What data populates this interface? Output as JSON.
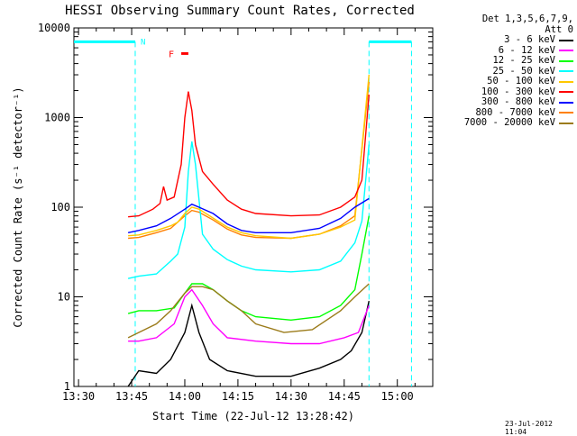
{
  "chart_data": {
    "type": "line",
    "title": "HESSI Observing Summary Count Rates, Corrected",
    "xlabel": "Start Time (22-Jul-12 13:28:42)",
    "ylabel": "Corrected Count Rate (s⁻¹ detector⁻¹)",
    "x_ticks": [
      "13:30",
      "13:45",
      "14:00",
      "14:15",
      "14:30",
      "14:45",
      "15:00"
    ],
    "y_ticks": [
      "1",
      "10",
      "100",
      "1000",
      "10000"
    ],
    "x_range": [
      "13:28:42",
      "15:10"
    ],
    "ylim": [
      1,
      10000
    ],
    "y_scale": "log",
    "series": [
      {
        "name": "3 - 6 keV",
        "color": "#000000",
        "points": [
          [
            "13:44",
            1
          ],
          [
            "13:47",
            1.5
          ],
          [
            "13:52",
            1.4
          ],
          [
            "13:56",
            2
          ],
          [
            "14:00",
            4
          ],
          [
            "14:02",
            8
          ],
          [
            "14:04",
            4
          ],
          [
            "14:07",
            2
          ],
          [
            "14:12",
            1.5
          ],
          [
            "14:20",
            1.3
          ],
          [
            "14:30",
            1.3
          ],
          [
            "14:38",
            1.6
          ],
          [
            "14:44",
            2
          ],
          [
            "14:47",
            2.5
          ],
          [
            "14:50",
            4
          ],
          [
            "14:52",
            9
          ]
        ]
      },
      {
        "name": "6 - 12 keV",
        "color": "#ff00ff",
        "points": [
          [
            "13:44",
            3.2
          ],
          [
            "13:47",
            3.2
          ],
          [
            "13:52",
            3.5
          ],
          [
            "13:57",
            5
          ],
          [
            "14:00",
            10
          ],
          [
            "14:02",
            12
          ],
          [
            "14:05",
            8
          ],
          [
            "14:08",
            5
          ],
          [
            "14:12",
            3.5
          ],
          [
            "14:20",
            3.2
          ],
          [
            "14:30",
            3.0
          ],
          [
            "14:38",
            3.0
          ],
          [
            "14:45",
            3.5
          ],
          [
            "14:49",
            4
          ],
          [
            "14:52",
            8
          ]
        ]
      },
      {
        "name": "12 - 25 keV",
        "color": "#00ff00",
        "points": [
          [
            "13:44",
            6.5
          ],
          [
            "13:47",
            7
          ],
          [
            "13:52",
            7
          ],
          [
            "13:57",
            7.5
          ],
          [
            "14:00",
            11
          ],
          [
            "14:02",
            14
          ],
          [
            "14:05",
            14
          ],
          [
            "14:08",
            12
          ],
          [
            "14:12",
            9
          ],
          [
            "14:16",
            7
          ],
          [
            "14:20",
            6
          ],
          [
            "14:30",
            5.5
          ],
          [
            "14:38",
            6
          ],
          [
            "14:44",
            8
          ],
          [
            "14:48",
            12
          ],
          [
            "14:50",
            30
          ],
          [
            "14:52",
            80
          ]
        ]
      },
      {
        "name": "25 - 50 keV",
        "color": "#00ffff",
        "points": [
          [
            "13:44",
            16
          ],
          [
            "13:47",
            17
          ],
          [
            "13:52",
            18
          ],
          [
            "13:56",
            25
          ],
          [
            "13:58",
            30
          ],
          [
            "14:00",
            60
          ],
          [
            "14:01",
            250
          ],
          [
            "14:02",
            540
          ],
          [
            "14:03",
            300
          ],
          [
            "14:05",
            50
          ],
          [
            "14:08",
            34
          ],
          [
            "14:12",
            26
          ],
          [
            "14:16",
            22
          ],
          [
            "14:20",
            20
          ],
          [
            "14:30",
            19
          ],
          [
            "14:38",
            20
          ],
          [
            "14:44",
            25
          ],
          [
            "14:48",
            40
          ],
          [
            "14:50",
            70
          ],
          [
            "14:52",
            500
          ]
        ]
      },
      {
        "name": "50 - 100 keV",
        "color": "#ffc800",
        "points": [
          [
            "13:44",
            48
          ],
          [
            "13:47",
            49
          ],
          [
            "13:52",
            55
          ],
          [
            "13:56",
            62
          ],
          [
            "13:58",
            68
          ],
          [
            "14:00",
            85
          ],
          [
            "14:02",
            100
          ],
          [
            "14:04",
            95
          ],
          [
            "14:07",
            80
          ],
          [
            "14:12",
            60
          ],
          [
            "14:16",
            52
          ],
          [
            "14:20",
            48
          ],
          [
            "14:30",
            45
          ],
          [
            "14:38",
            50
          ],
          [
            "14:44",
            60
          ],
          [
            "14:48",
            72
          ],
          [
            "14:52",
            3000
          ]
        ]
      },
      {
        "name": "100 - 300 keV",
        "color": "#ff0000",
        "points": [
          [
            "13:44",
            78
          ],
          [
            "13:47",
            80
          ],
          [
            "13:51",
            95
          ],
          [
            "13:53",
            110
          ],
          [
            "13:54",
            170
          ],
          [
            "13:55",
            120
          ],
          [
            "13:57",
            130
          ],
          [
            "13:59",
            300
          ],
          [
            "14:00",
            1000
          ],
          [
            "14:01",
            1950
          ],
          [
            "14:02",
            1200
          ],
          [
            "14:03",
            500
          ],
          [
            "14:05",
            250
          ],
          [
            "14:08",
            180
          ],
          [
            "14:12",
            120
          ],
          [
            "14:16",
            95
          ],
          [
            "14:20",
            85
          ],
          [
            "14:30",
            80
          ],
          [
            "14:38",
            82
          ],
          [
            "14:44",
            100
          ],
          [
            "14:48",
            130
          ],
          [
            "14:50",
            200
          ],
          [
            "14:52",
            1800
          ]
        ]
      },
      {
        "name": "300 - 800 keV",
        "color": "#0000ff",
        "points": [
          [
            "13:44",
            52
          ],
          [
            "13:47",
            55
          ],
          [
            "13:52",
            62
          ],
          [
            "13:56",
            75
          ],
          [
            "14:00",
            95
          ],
          [
            "14:02",
            108
          ],
          [
            "14:04",
            100
          ],
          [
            "14:08",
            85
          ],
          [
            "14:12",
            65
          ],
          [
            "14:16",
            55
          ],
          [
            "14:20",
            52
          ],
          [
            "14:30",
            52
          ],
          [
            "14:38",
            58
          ],
          [
            "14:44",
            75
          ],
          [
            "14:48",
            100
          ],
          [
            "14:52",
            125
          ]
        ]
      },
      {
        "name": "800 - 7000 keV",
        "color": "#ff8000",
        "points": [
          [
            "13:44",
            45
          ],
          [
            "13:47",
            46
          ],
          [
            "13:52",
            52
          ],
          [
            "13:56",
            58
          ],
          [
            "14:00",
            80
          ],
          [
            "14:02",
            92
          ],
          [
            "14:04",
            88
          ],
          [
            "14:08",
            72
          ],
          [
            "14:12",
            57
          ],
          [
            "14:16",
            49
          ],
          [
            "14:20",
            46
          ],
          [
            "14:30",
            45
          ],
          [
            "14:38",
            50
          ],
          [
            "14:44",
            62
          ],
          [
            "14:48",
            80
          ],
          [
            "14:52",
            2500
          ]
        ]
      },
      {
        "name": "7000 - 20000 keV",
        "color": "#9b7b1a",
        "points": [
          [
            "13:44",
            3.5
          ],
          [
            "13:47",
            4
          ],
          [
            "13:52",
            5
          ],
          [
            "13:56",
            7
          ],
          [
            "14:00",
            11
          ],
          [
            "14:02",
            13
          ],
          [
            "14:05",
            13
          ],
          [
            "14:08",
            12
          ],
          [
            "14:12",
            9
          ],
          [
            "14:16",
            7
          ],
          [
            "14:20",
            5
          ],
          [
            "14:28",
            4
          ],
          [
            "14:36",
            4.3
          ],
          [
            "14:44",
            7
          ],
          [
            "14:48",
            10
          ],
          [
            "14:52",
            14
          ]
        ]
      }
    ],
    "annotations": {
      "night_label": "N",
      "flare_label": "F",
      "flare_interval": [
        "13:59",
        "14:01"
      ],
      "night_intervals": [
        [
          "13:28:42",
          "13:46"
        ],
        [
          "14:52",
          "15:04"
        ]
      ],
      "night_level": 7000
    },
    "legend": {
      "placement": "right",
      "header_lines": [
        "Det 1,3,5,6,7,9,",
        "Att 0"
      ]
    }
  },
  "footer": {
    "date_stamp": "23-Jul-2012 11:04"
  }
}
